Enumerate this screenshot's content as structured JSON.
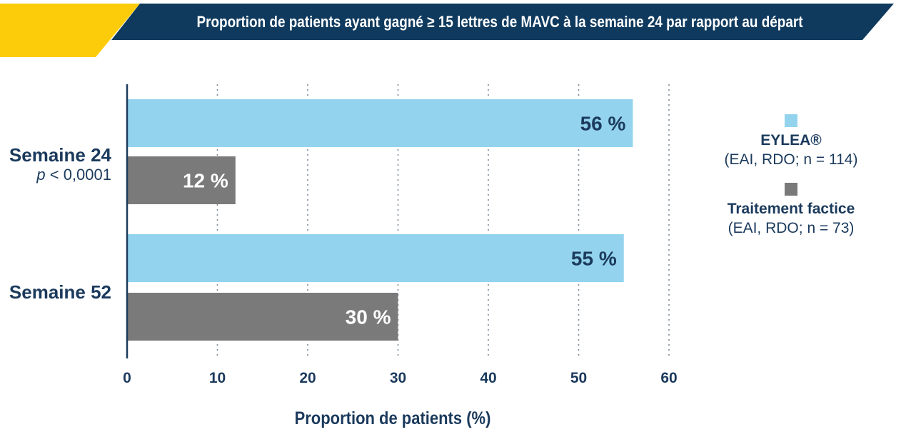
{
  "header": {
    "title": "Proportion de patients ayant gagné ≥ 15 lettres de MAVC à la semaine 24 par rapport au départ",
    "accent_color": "#fccc0a",
    "band_color": "#0f3a5e"
  },
  "legend": {
    "items": [
      {
        "name": "EYLEA®",
        "sub": "(EAI, RDO; n = 114)",
        "color": "#93d3ee"
      },
      {
        "name": "Traitement factice",
        "sub": "(EAI, RDO; n = 73)",
        "color": "#7a7a7a"
      }
    ]
  },
  "chart_data": {
    "type": "bar",
    "orientation": "horizontal",
    "categories": [
      "Semaine 24",
      "Semaine 52"
    ],
    "category_notes": [
      "p < 0,0001",
      ""
    ],
    "series": [
      {
        "name": "EYLEA®",
        "values": [
          56,
          55
        ],
        "labels": [
          "56 %",
          "55 %"
        ],
        "color": "#93d3ee"
      },
      {
        "name": "Traitement factice",
        "values": [
          12,
          30
        ],
        "labels": [
          "12 %",
          "30 %"
        ],
        "color": "#7a7a7a"
      }
    ],
    "xlabel": "Proportion de patients (%)",
    "xlim": [
      0,
      60
    ],
    "xticks": [
      0,
      10,
      20,
      30,
      40,
      50,
      60
    ],
    "grid": "vertical dotted",
    "legend_position": "right"
  }
}
